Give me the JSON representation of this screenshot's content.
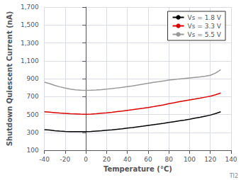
{
  "chart_data": {
    "type": "line",
    "xlabel": "Temperature (°C)",
    "ylabel": "Shutdown Quiescent Current (nA)",
    "x": [
      -40,
      -35,
      -30,
      -25,
      -20,
      -15,
      -10,
      -5,
      0,
      5,
      10,
      15,
      20,
      25,
      30,
      35,
      40,
      45,
      50,
      55,
      60,
      65,
      70,
      75,
      80,
      85,
      90,
      95,
      100,
      105,
      110,
      115,
      120,
      125,
      130
    ],
    "series": [
      {
        "name": "Vs = 1.8 V",
        "color": "#000000",
        "values": [
          330,
          325,
          318,
          313,
          310,
          308,
          307,
          307,
          308,
          310,
          314,
          318,
          323,
          328,
          334,
          340,
          347,
          354,
          362,
          369,
          377,
          385,
          393,
          401,
          410,
          419,
          428,
          437,
          447,
          458,
          469,
          481,
          493,
          510,
          530
        ]
      },
      {
        "name": "Vs = 3.3 V",
        "color": "#dd0000",
        "values": [
          530,
          525,
          520,
          515,
          511,
          507,
          505,
          503,
          502,
          504,
          508,
          513,
          518,
          524,
          531,
          538,
          546,
          553,
          561,
          569,
          578,
          587,
          597,
          607,
          620,
          630,
          643,
          653,
          663,
          672,
          682,
          693,
          704,
          720,
          740
        ]
      },
      {
        "name": "Vs = 5.5 V",
        "color": "#999999",
        "values": [
          860,
          845,
          825,
          808,
          795,
          783,
          776,
          772,
          770,
          771,
          774,
          778,
          783,
          789,
          796,
          803,
          811,
          819,
          828,
          838,
          848,
          858,
          866,
          875,
          884,
          891,
          897,
          902,
          908,
          914,
          920,
          928,
          938,
          962,
          1000
        ]
      }
    ],
    "xlim": [
      -40,
      140
    ],
    "ylim": [
      100,
      1700
    ],
    "xticks": [
      -40,
      -20,
      0,
      20,
      40,
      60,
      80,
      100,
      120,
      140
    ],
    "yticks": [
      100,
      300,
      500,
      700,
      900,
      1100,
      1300,
      1500,
      1700
    ],
    "grid": true,
    "legend": "upper right",
    "annotations": [
      "TI2"
    ]
  }
}
